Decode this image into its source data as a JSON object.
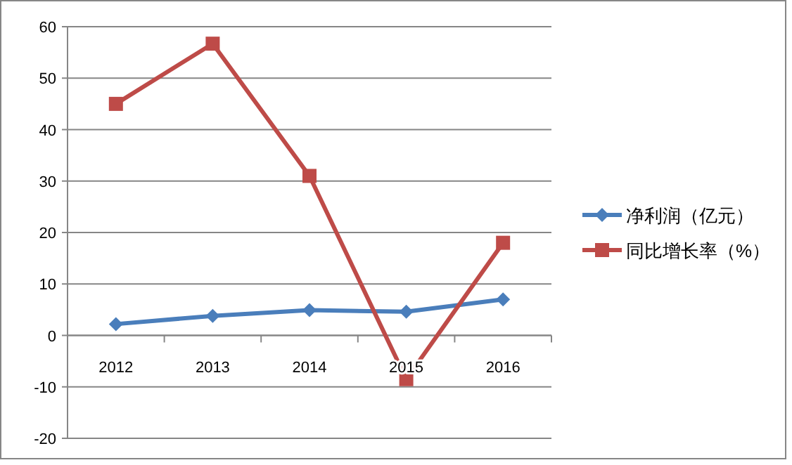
{
  "chart_data": {
    "type": "line",
    "categories": [
      "2012",
      "2013",
      "2014",
      "2015",
      "2016"
    ],
    "series": [
      {
        "name": "净利润（亿元）",
        "color": "#4a7ebb",
        "marker": "diamond",
        "values": [
          2.2,
          3.8,
          4.9,
          4.6,
          7.0
        ]
      },
      {
        "name": "同比增长率（%）",
        "color": "#be4b48",
        "marker": "square",
        "values": [
          45,
          56.7,
          31,
          -8.5,
          18
        ]
      }
    ],
    "ylim": [
      -20,
      60
    ],
    "yticks": [
      -20,
      -10,
      0,
      10,
      20,
      30,
      40,
      50,
      60
    ],
    "grid": "y",
    "legend": "right"
  }
}
